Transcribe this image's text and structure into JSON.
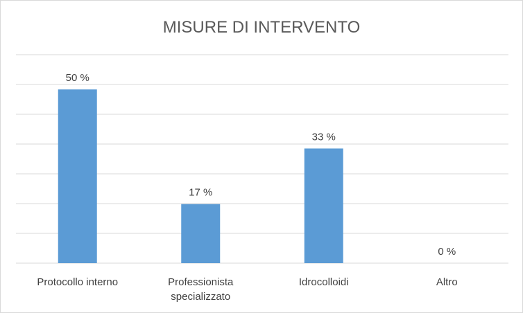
{
  "chart_data": {
    "type": "bar",
    "title": "MISURE DI INTERVENTO",
    "categories": [
      [
        "Protocollo interno"
      ],
      [
        "Professionista",
        "specializzato"
      ],
      [
        "Idrocolloidi"
      ],
      [
        "Altro"
      ]
    ],
    "values": [
      50,
      17,
      33,
      0
    ],
    "data_labels": [
      "50 %",
      "17 %",
      "33 %",
      "0 %"
    ],
    "ylim": [
      0,
      60
    ],
    "grid": true,
    "legend": "none",
    "bar_color": "#5b9bd5"
  }
}
